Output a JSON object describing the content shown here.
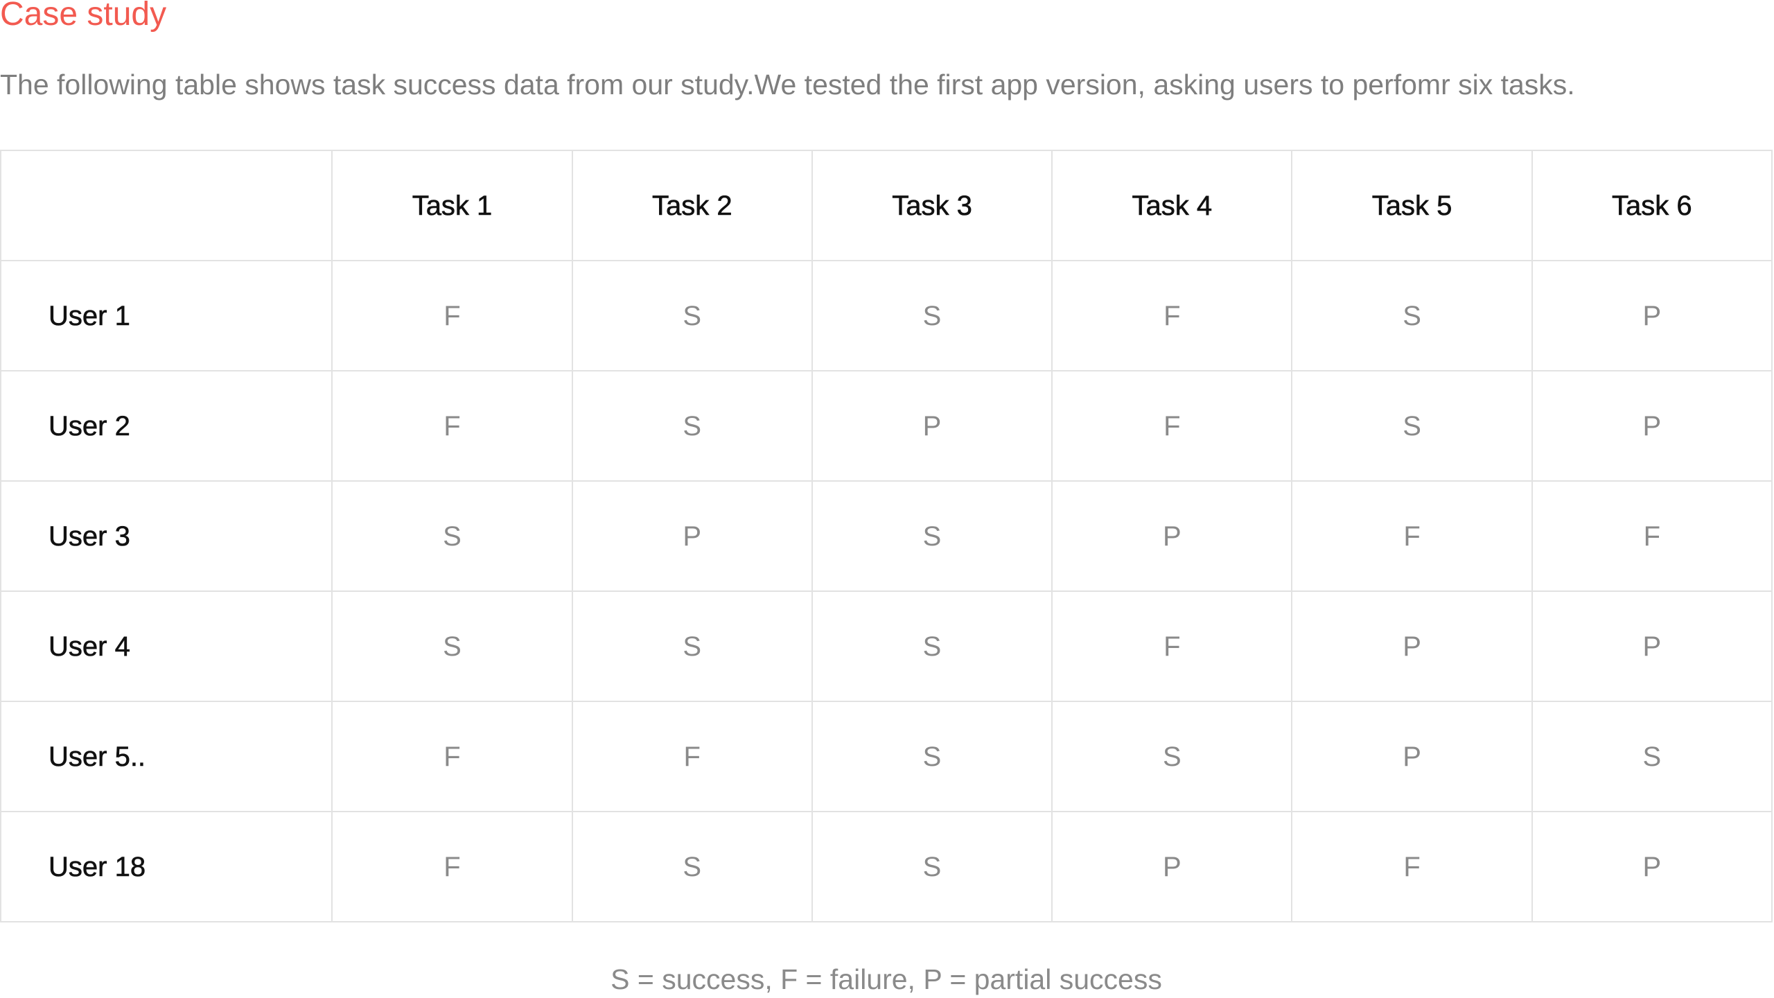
{
  "title": "Case study",
  "intro": "The following table shows task success data from our study.We tested the first app version, asking users to perfomr six tasks.",
  "colors": {
    "title": "#f25a50",
    "body_text": "#7e7e7e",
    "header_text": "#111111",
    "grid_line": "#e2e2e2"
  },
  "table": {
    "corner_header": "",
    "columns": [
      "Task 1",
      "Task 2",
      "Task 3",
      "Task 4",
      "Task 5",
      "Task 6"
    ],
    "rows": [
      {
        "user": "User 1",
        "results": [
          "F",
          "S",
          "S",
          "F",
          "S",
          "P"
        ]
      },
      {
        "user": "User 2",
        "results": [
          "F",
          "S",
          "P",
          "F",
          "S",
          "P"
        ]
      },
      {
        "user": "User 3",
        "results": [
          "S",
          "P",
          "S",
          "P",
          "F",
          "F"
        ]
      },
      {
        "user": "User 4",
        "results": [
          "S",
          "S",
          "S",
          "F",
          "P",
          "P"
        ]
      },
      {
        "user": "User 5..",
        "results": [
          "F",
          "F",
          "S",
          "S",
          "P",
          "S"
        ]
      },
      {
        "user": "User 18",
        "results": [
          "F",
          "S",
          "S",
          "P",
          "F",
          "P"
        ]
      }
    ]
  },
  "legend": "S = success, F = failure, P = partial success"
}
